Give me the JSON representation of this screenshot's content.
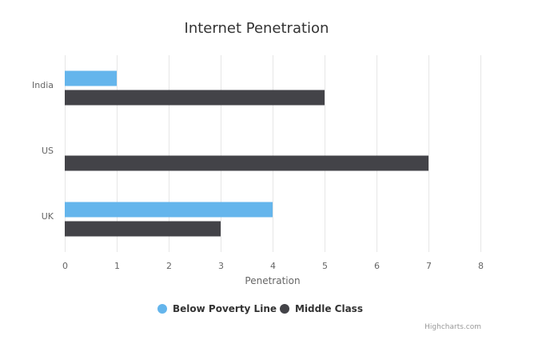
{
  "chart_data": {
    "type": "bar",
    "orientation": "horizontal",
    "title": "Internet Penetration",
    "categories": [
      "India",
      "US",
      "UK"
    ],
    "xlabel": "Penetration",
    "ylabel": "",
    "xlim": [
      0,
      8
    ],
    "x_ticks": [
      0,
      1,
      2,
      3,
      4,
      5,
      6,
      7,
      8
    ],
    "grid": true,
    "legend_position": "bottom",
    "series": [
      {
        "name": "Below Poverty Line",
        "values": [
          1,
          0,
          4
        ],
        "color": "#64b5ec"
      },
      {
        "name": "Middle Class",
        "values": [
          5,
          7,
          3
        ],
        "color": "#434348"
      }
    ]
  },
  "credits": "Highcharts.com"
}
